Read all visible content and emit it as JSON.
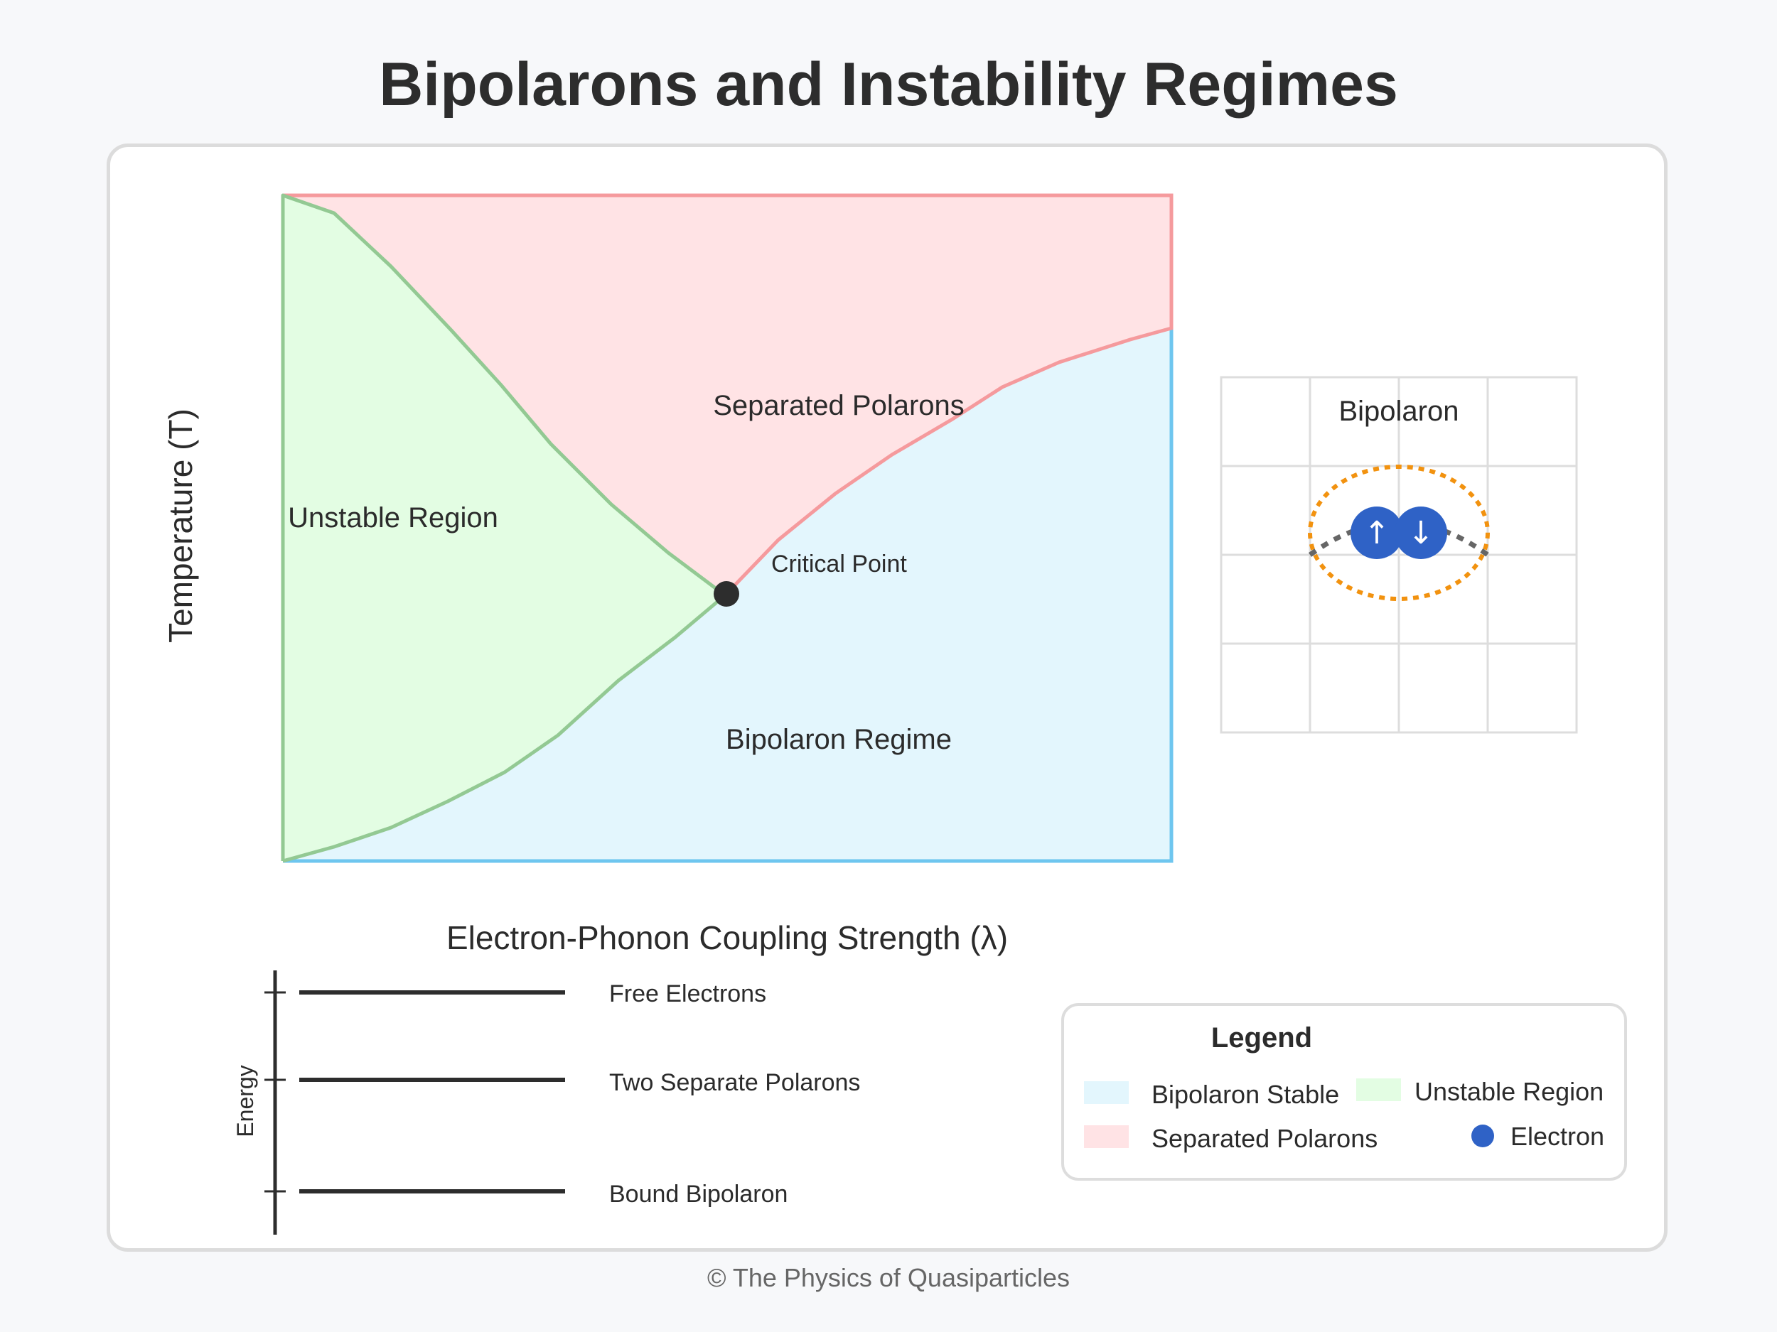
{
  "title": "Bipolarons and Instability Regimes",
  "footer": "© The Physics of Quasiparticles",
  "phase_diagram": {
    "xlabel": "Electron-Phonon Coupling Strength (λ)",
    "ylabel": "Temperature (T)",
    "regions": {
      "separated": "Separated Polarons",
      "unstable": "Unstable Region",
      "bipolaron": "Bipolaron Regime"
    },
    "critical_point_label": "Critical Point",
    "colors": {
      "separated_fill": "#ffe3e5",
      "separated_line": "#f59a9d",
      "unstable_fill": "#e3fde3",
      "unstable_line": "#93c993",
      "bipolaron_fill": "#e3f6fd",
      "bipolaron_line": "#6ec6ef",
      "critical_point": "#2d2d2d"
    }
  },
  "lattice": {
    "label": "Bipolaron",
    "spin_up": "↑",
    "spin_down": "↓",
    "colors": {
      "electron": "#2f62c6",
      "cloud": "#f2920f",
      "grid": "#dddddd",
      "distortion": "#666666"
    }
  },
  "energy_levels": {
    "axis_label": "Energy",
    "levels": [
      {
        "label": "Free Electrons"
      },
      {
        "label": "Two Separate Polarons"
      },
      {
        "label": "Bound Bipolaron"
      }
    ]
  },
  "legend": {
    "title": "Legend",
    "items": [
      {
        "label": "Bipolaron Stable",
        "color": "#e3f6fd"
      },
      {
        "label": "Unstable Region",
        "color": "#e3fde3"
      },
      {
        "label": "Separated Polarons",
        "color": "#ffe3e5"
      },
      {
        "label": "Electron",
        "color": "#2f62c6"
      }
    ]
  }
}
